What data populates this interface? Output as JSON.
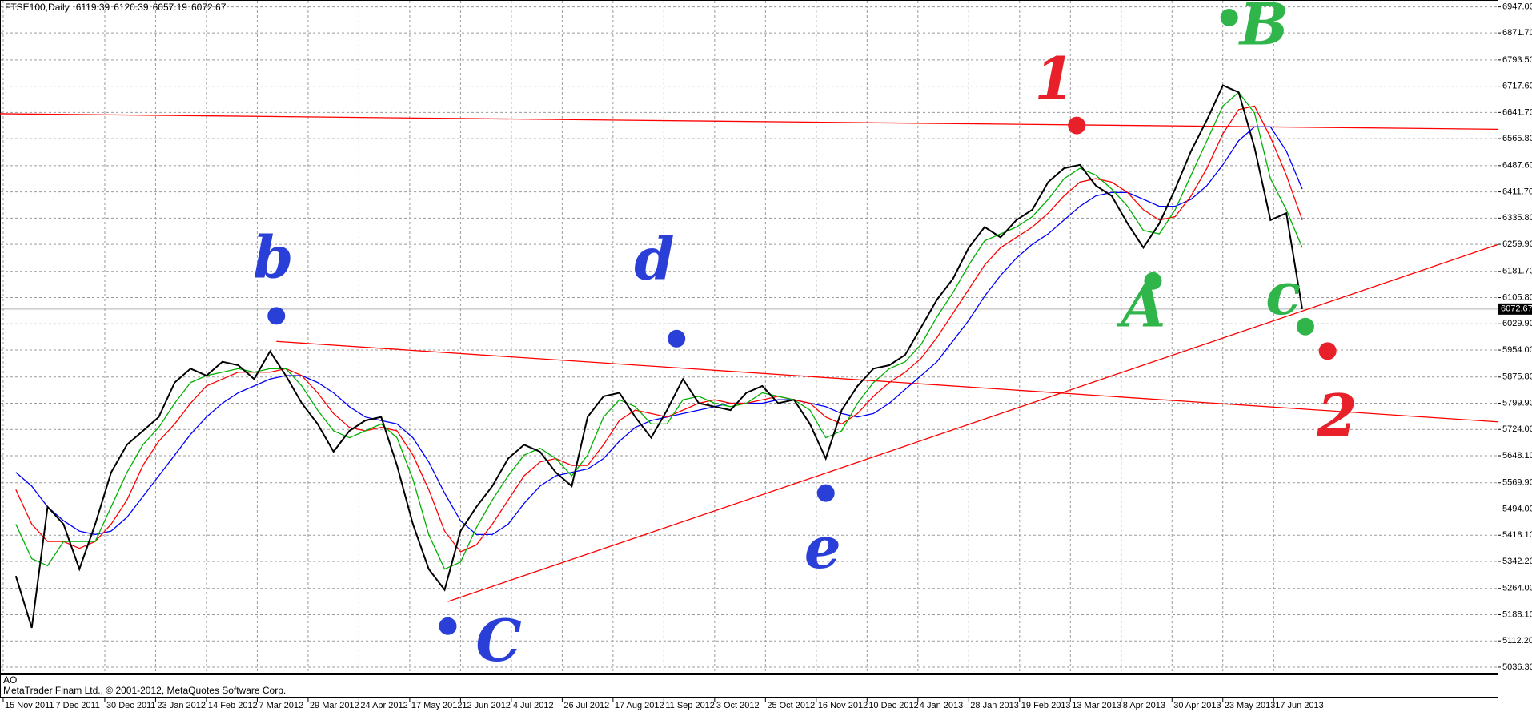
{
  "chart_data": {
    "type": "line",
    "title": "FTSE100,Daily",
    "ohlc": [
      6119.39,
      6120.39,
      6057.19,
      6072.67
    ],
    "footer": "MetaTrader Finam Ltd., © 2001-2012, MetaQuotes Software Corp.",
    "indicator_label": "AO",
    "current_price": 6072.67,
    "xlim": [
      -1,
      470.5
    ],
    "ylim": [
      5020,
      6967
    ],
    "grid": true,
    "xticks": [
      {
        "value": 0,
        "label": "15 Nov 2011"
      },
      {
        "value": 16,
        "label": "7 Dec 2011"
      },
      {
        "value": 32,
        "label": "30 Dec 2011"
      },
      {
        "value": 48,
        "label": "23 Jan 2012"
      },
      {
        "value": 64,
        "label": "14 Feb 2012"
      },
      {
        "value": 80,
        "label": "7 Mar 2012"
      },
      {
        "value": 96,
        "label": "29 Mar 2012"
      },
      {
        "value": 112,
        "label": "24 Apr 2012"
      },
      {
        "value": 128,
        "label": "17 May 2012"
      },
      {
        "value": 144,
        "label": "12 Jun 2012"
      },
      {
        "value": 160,
        "label": "4 Jul 2012"
      },
      {
        "value": 176,
        "label": "26 Jul 2012"
      },
      {
        "value": 192,
        "label": "17 Aug 2012"
      },
      {
        "value": 208,
        "label": "11 Sep 2012"
      },
      {
        "value": 224,
        "label": "3 Oct 2012"
      },
      {
        "value": 240,
        "label": "25 Oct 2012"
      },
      {
        "value": 256,
        "label": "16 Nov 2012"
      },
      {
        "value": 272,
        "label": "10 Dec 2012"
      },
      {
        "value": 288,
        "label": "4 Jan 2013"
      },
      {
        "value": 304,
        "label": "28 Jan 2013"
      },
      {
        "value": 320,
        "label": "19 Feb 2013"
      },
      {
        "value": 336,
        "label": "13 Mar 2013"
      },
      {
        "value": 352,
        "label": "8 Apr 2013"
      },
      {
        "value": 368,
        "label": "30 Apr 2013"
      },
      {
        "value": 384,
        "label": "23 May 2013"
      },
      {
        "value": 400,
        "label": "17 Jun 2013"
      }
    ],
    "yticks": [
      {
        "value": 6947,
        "label": "6947.00"
      },
      {
        "value": 6871.7,
        "label": "6871.70"
      },
      {
        "value": 6793.5,
        "label": "6793.50"
      },
      {
        "value": 6717.6,
        "label": "6717.60"
      },
      {
        "value": 6641.7,
        "label": "6641.70"
      },
      {
        "value": 6565.8,
        "label": "6565.80"
      },
      {
        "value": 6487.6,
        "label": "6487.60"
      },
      {
        "value": 6411.7,
        "label": "6411.70"
      },
      {
        "value": 6335.8,
        "label": "6335.80"
      },
      {
        "value": 6259.9,
        "label": "6259.90"
      },
      {
        "value": 6181.7,
        "label": "6181.70"
      },
      {
        "value": 6105.8,
        "label": "6105.80"
      },
      {
        "value": 6029.9,
        "label": "6029.90"
      },
      {
        "value": 5954,
        "label": "5954.00"
      },
      {
        "value": 5875.8,
        "label": "5875.80"
      },
      {
        "value": 5799.9,
        "label": "5799.90"
      },
      {
        "value": 5724,
        "label": "5724.00"
      },
      {
        "value": 5648.1,
        "label": "5648.10"
      },
      {
        "value": 5569.9,
        "label": "5569.90"
      },
      {
        "value": 5494,
        "label": "5494.00"
      },
      {
        "value": 5418.1,
        "label": "5418.10"
      },
      {
        "value": 5342.2,
        "label": "5342.20"
      },
      {
        "value": 5264,
        "label": "5264.00"
      },
      {
        "value": 5188.1,
        "label": "5188.10"
      },
      {
        "value": 5112.2,
        "label": "5112.20"
      },
      {
        "value": 5036.3,
        "label": "5036.30"
      }
    ],
    "x": [
      4,
      9,
      14,
      19,
      24,
      29,
      34,
      39,
      44,
      49,
      54,
      59,
      64,
      69,
      74,
      79,
      84,
      89,
      94,
      99,
      104,
      109,
      114,
      119,
      124,
      129,
      134,
      139,
      144,
      149,
      154,
      159,
      164,
      169,
      174,
      179,
      184,
      189,
      194,
      199,
      204,
      209,
      214,
      219,
      224,
      229,
      234,
      239,
      244,
      249,
      254,
      259,
      264,
      269,
      274,
      279,
      284,
      289,
      294,
      299,
      304,
      309,
      314,
      319,
      324,
      329,
      334,
      339,
      344,
      349,
      354,
      359,
      364,
      369,
      374,
      379,
      384,
      389,
      394,
      399,
      404,
      409
    ],
    "series": [
      {
        "color": "#0000ff",
        "values": [
          5600,
          5560,
          5500,
          5460,
          5430,
          5420,
          5430,
          5470,
          5530,
          5590,
          5650,
          5710,
          5760,
          5800,
          5830,
          5850,
          5870,
          5880,
          5880,
          5860,
          5830,
          5790,
          5760,
          5750,
          5740,
          5700,
          5630,
          5540,
          5460,
          5420,
          5420,
          5450,
          5510,
          5560,
          5590,
          5600,
          5610,
          5640,
          5690,
          5730,
          5750,
          5760,
          5770,
          5780,
          5790,
          5800,
          5800,
          5800,
          5810,
          5810,
          5800,
          5790,
          5770,
          5760,
          5770,
          5800,
          5840,
          5880,
          5920,
          5980,
          6040,
          6110,
          6170,
          6220,
          6260,
          6290,
          6330,
          6370,
          6400,
          6410,
          6410,
          6390,
          6370,
          6370,
          6390,
          6430,
          6490,
          6560,
          6600,
          6600,
          6530,
          6420
        ]
      },
      {
        "color": "#ff0000",
        "values": [
          5550,
          5450,
          5400,
          5400,
          5380,
          5400,
          5450,
          5520,
          5620,
          5690,
          5740,
          5800,
          5850,
          5870,
          5890,
          5890,
          5890,
          5900,
          5880,
          5830,
          5770,
          5730,
          5720,
          5730,
          5720,
          5650,
          5550,
          5430,
          5370,
          5390,
          5450,
          5520,
          5590,
          5630,
          5640,
          5620,
          5620,
          5680,
          5750,
          5780,
          5770,
          5760,
          5780,
          5800,
          5810,
          5800,
          5800,
          5810,
          5820,
          5810,
          5800,
          5760,
          5740,
          5770,
          5820,
          5860,
          5890,
          5930,
          5990,
          6060,
          6130,
          6200,
          6250,
          6280,
          6310,
          6350,
          6400,
          6440,
          6450,
          6440,
          6410,
          6360,
          6330,
          6340,
          6400,
          6480,
          6580,
          6650,
          6660,
          6570,
          6460,
          6330
        ]
      },
      {
        "color": "#00b000",
        "values": [
          5450,
          5350,
          5330,
          5400,
          5400,
          5400,
          5500,
          5600,
          5680,
          5730,
          5800,
          5860,
          5880,
          5890,
          5900,
          5890,
          5900,
          5900,
          5850,
          5780,
          5720,
          5700,
          5720,
          5740,
          5700,
          5580,
          5420,
          5320,
          5340,
          5440,
          5520,
          5590,
          5650,
          5670,
          5640,
          5590,
          5650,
          5760,
          5810,
          5790,
          5740,
          5740,
          5810,
          5820,
          5800,
          5790,
          5800,
          5830,
          5820,
          5810,
          5780,
          5700,
          5720,
          5800,
          5860,
          5900,
          5920,
          5970,
          6050,
          6120,
          6200,
          6270,
          6290,
          6310,
          6340,
          6390,
          6450,
          6480,
          6460,
          6420,
          6370,
          6300,
          6290,
          6360,
          6460,
          6560,
          6660,
          6700,
          6640,
          6450,
          6360,
          6250
        ]
      },
      {
        "color": "#000000",
        "values": [
          5300,
          5150,
          5500,
          5450,
          5320,
          5450,
          5600,
          5680,
          5720,
          5760,
          5860,
          5900,
          5880,
          5920,
          5910,
          5870,
          5950,
          5880,
          5800,
          5740,
          5660,
          5720,
          5750,
          5760,
          5620,
          5450,
          5320,
          5260,
          5430,
          5500,
          5560,
          5640,
          5680,
          5660,
          5600,
          5560,
          5760,
          5820,
          5830,
          5760,
          5700,
          5780,
          5870,
          5800,
          5790,
          5780,
          5830,
          5850,
          5800,
          5810,
          5740,
          5640,
          5780,
          5850,
          5900,
          5910,
          5940,
          6020,
          6100,
          6160,
          6250,
          6310,
          6280,
          6330,
          6360,
          6440,
          6480,
          6490,
          6430,
          6400,
          6320,
          6250,
          6320,
          6420,
          6530,
          6620,
          6720,
          6700,
          6540,
          6330,
          6350,
          6072.67
        ]
      }
    ],
    "trend_lines": [
      {
        "color": "#ff0000",
        "x": [
          -1,
          470.5
        ],
        "y": [
          6638,
          6593
        ]
      },
      {
        "color": "#ff0000",
        "x": [
          86,
          470.5
        ],
        "y": [
          5979,
          5746
        ]
      },
      {
        "color": "#ff0000",
        "x": [
          140,
          470.5
        ],
        "y": [
          5226,
          6259
        ]
      }
    ],
    "annotations": [
      {
        "text": "b",
        "color": "#2a3fd8",
        "x": 85,
        "y": 6208,
        "dot_x": 86,
        "dot_y": 6053
      },
      {
        "text": "C",
        "color": "#2a3fd8",
        "x": 156,
        "y": 5099,
        "dot_x": 140,
        "dot_y": 5155
      },
      {
        "text": "d",
        "color": "#2a3fd8",
        "x": 205,
        "y": 6203,
        "dot_x": 212,
        "dot_y": 5987
      },
      {
        "text": "e",
        "color": "#2a3fd8",
        "x": 258,
        "y": 5368,
        "dot_x": 259,
        "dot_y": 5540
      },
      {
        "text": "1",
        "color": "#e8202a",
        "x": 331,
        "y": 6726,
        "dot_x": 338,
        "dot_y": 6604
      },
      {
        "text": "A",
        "color": "#2fb54a",
        "x": 359,
        "y": 6067,
        "dot_x": 362,
        "dot_y": 6154
      },
      {
        "text": "B",
        "color": "#2fb54a",
        "x": 397,
        "y": 6882,
        "dot_x": 386,
        "dot_y": 6916
      },
      {
        "text": "c",
        "color": "#2fb54a",
        "x": 403,
        "y": 6103,
        "dot_x": 410,
        "dot_y": 6022
      },
      {
        "text": "2",
        "color": "#e8202a",
        "x": 420,
        "y": 5750,
        "dot_x": 417,
        "dot_y": 5951
      }
    ]
  }
}
